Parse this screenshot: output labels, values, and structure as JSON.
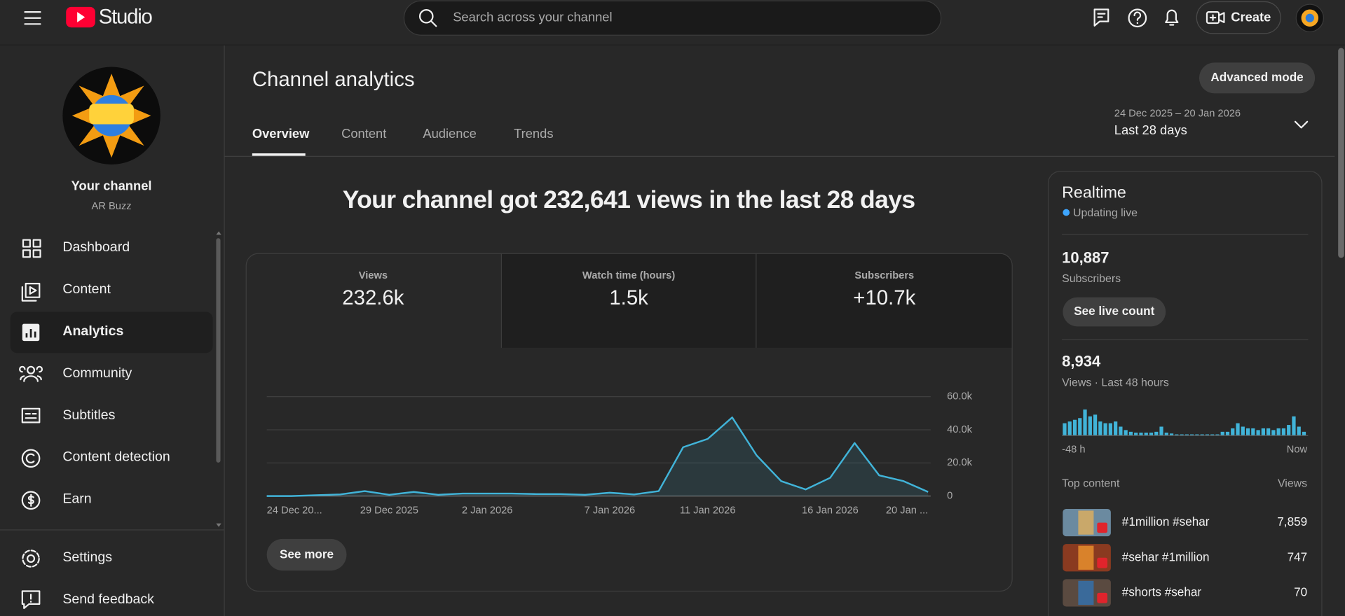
{
  "header": {
    "logo_text": "Studio",
    "search_placeholder": "Search across your channel",
    "create": "Create"
  },
  "sidebar": {
    "channel_title": "Your channel",
    "channel_name": "AR Buzz",
    "nav": [
      "Dashboard",
      "Content",
      "Analytics",
      "Community",
      "Subtitles",
      "Content detection",
      "Earn"
    ],
    "footer_nav": [
      "Settings",
      "Send feedback"
    ]
  },
  "page": {
    "title": "Channel analytics",
    "advanced_mode": "Advanced mode",
    "tabs": [
      "Overview",
      "Content",
      "Audience",
      "Trends"
    ],
    "date_range": "24 Dec 2025 – 20 Jan 2026",
    "period": "Last 28 days"
  },
  "headline": "Your channel got 232,641 views in the last 28 days",
  "metrics": [
    {
      "label": "Views",
      "value": "232.6k"
    },
    {
      "label": "Watch time (hours)",
      "value": "1.5k"
    },
    {
      "label": "Subscribers",
      "value": "+10.7k"
    }
  ],
  "views_chart": {
    "type": "line",
    "color": "#41b4d9",
    "categories": [
      "24 Dec 20...",
      null,
      null,
      null,
      null,
      "29 Dec 2025",
      null,
      null,
      null,
      "2 Jan 2026",
      null,
      null,
      null,
      null,
      "7 Jan 2026",
      null,
      null,
      null,
      "11 Jan 2026",
      null,
      null,
      null,
      null,
      "16 Jan 2026",
      null,
      null,
      null,
      "20 Jan ..."
    ],
    "values": [
      0,
      0,
      500,
      1000,
      3000,
      800,
      2500,
      800,
      1500,
      1500,
      1500,
      1200,
      1200,
      800,
      2000,
      1000,
      3000,
      29500,
      34500,
      47500,
      24500,
      9000,
      4000,
      11000,
      32000,
      12500,
      9000,
      2500
    ],
    "ylim": [
      0,
      60000
    ],
    "yticks": [
      0,
      {
        "value": 20000,
        "label": "20.0k"
      },
      {
        "value": 40000,
        "label": "40.0k"
      },
      {
        "value": 60000,
        "label": "60.0k"
      }
    ],
    "grid": true
  },
  "see_more": "See more",
  "realtime": {
    "title": "Realtime",
    "status": "Updating live",
    "subscribers": {
      "value": "10,887",
      "label": "Subscribers"
    },
    "see_live_count": "See live count",
    "views": {
      "value": "8,934",
      "label": "Views · Last 48 hours"
    },
    "bars": {
      "type": "bar",
      "color": "#41b4d9",
      "values": [
        14,
        16,
        18,
        20,
        30,
        22,
        24,
        16,
        14,
        14,
        16,
        10,
        6,
        4,
        3,
        3,
        3,
        3,
        4,
        10,
        3,
        2,
        1,
        1,
        1,
        1,
        1,
        1,
        1,
        1,
        1,
        4,
        4,
        8,
        14,
        10,
        8,
        8,
        6,
        8,
        8,
        6,
        8,
        8,
        12,
        22,
        10,
        4
      ],
      "start_label": "-48 h",
      "end_label": "Now"
    },
    "top_content": {
      "header": "Top content",
      "views_header": "Views",
      "items": [
        {
          "title": "#1million #sehar",
          "views": "7,859"
        },
        {
          "title": "#sehar #1million",
          "views": "747"
        },
        {
          "title": "#shorts #sehar",
          "views": "70"
        }
      ]
    }
  }
}
